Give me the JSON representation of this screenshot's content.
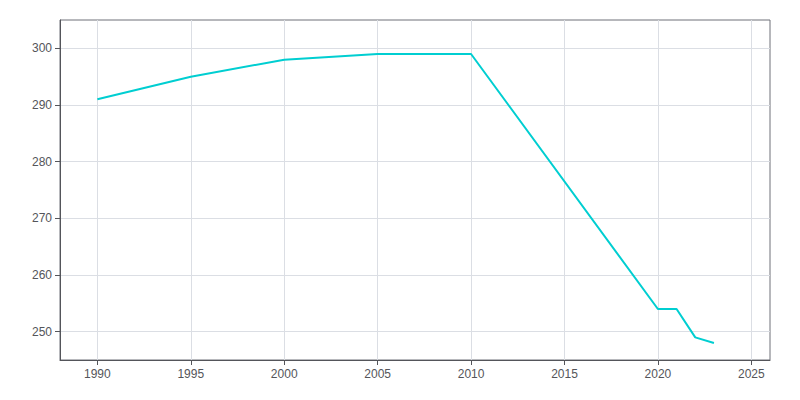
{
  "chart_data": {
    "type": "line",
    "x": [
      1990,
      1995,
      2000,
      2005,
      2010,
      2020,
      2021,
      2022,
      2023
    ],
    "values": [
      291,
      295,
      298,
      299,
      299,
      254,
      254,
      249,
      248
    ],
    "color": "#00CED1",
    "xlim": [
      1988,
      2026
    ],
    "ylim": [
      245,
      305
    ],
    "xticks": [
      1990,
      1995,
      2000,
      2005,
      2010,
      2015,
      2020,
      2025
    ],
    "yticks": [
      250,
      260,
      270,
      280,
      290,
      300
    ],
    "grid": true
  }
}
